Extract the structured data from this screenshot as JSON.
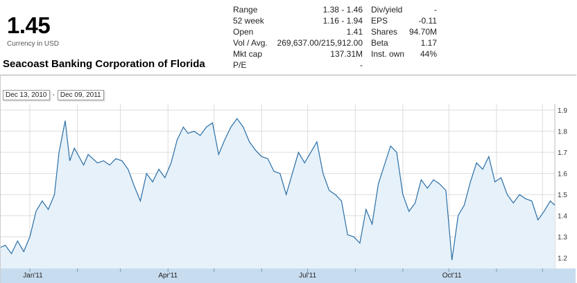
{
  "quote": {
    "price": "1.45",
    "currency": "Currency in USD",
    "company": "Seacoast Banking Corporation of Florida"
  },
  "stats_left": [
    {
      "label": "Range",
      "value": "1.38 - 1.46"
    },
    {
      "label": "52 week",
      "value": "1.16 - 1.94"
    },
    {
      "label": "Open",
      "value": "1.41"
    },
    {
      "label": "Vol / Avg.",
      "value": "269,637.00/215,912.00"
    },
    {
      "label": "Mkt cap",
      "value": "137.31M"
    },
    {
      "label": "P/E",
      "value": "-"
    }
  ],
  "stats_right": [
    {
      "label": "Div/yield",
      "value": "-"
    },
    {
      "label": "EPS",
      "value": "-0.11"
    },
    {
      "label": "Shares",
      "value": "94.70M"
    },
    {
      "label": "Beta",
      "value": "1.17"
    },
    {
      "label": "Inst. own",
      "value": "44%"
    }
  ],
  "date_range": {
    "start": "Dec 13, 2010",
    "separator": "-",
    "end": "Dec 09, 2011"
  },
  "colors": {
    "line": "#2a6ea6",
    "fill": "#e6f1fa",
    "grid": "#dcdcdc",
    "axis_band": "#c7dcef"
  },
  "chart_data": {
    "type": "area",
    "title": "",
    "xlabel": "",
    "ylabel": "",
    "ylim": [
      1.15,
      1.93
    ],
    "y_ticks": [
      1.2,
      1.3,
      1.4,
      1.5,
      1.6,
      1.7,
      1.8,
      1.9
    ],
    "y_tick_labels": [
      "1.2",
      "1.3",
      "1.4",
      "1.5",
      "1.6",
      "1.7",
      "1.8",
      "1.9"
    ],
    "x_labels": [
      {
        "label": "Jan'11",
        "date": "2011-01-03"
      },
      {
        "label": "Apr'11",
        "date": "2011-04-01"
      },
      {
        "label": "Jul'11",
        "date": "2011-07-01"
      },
      {
        "label": "Oct'11",
        "date": "2011-10-03"
      }
    ],
    "x_range": [
      "2010-12-13",
      "2011-12-09"
    ],
    "grid": true,
    "series": [
      {
        "x": [
          "2010-12-13",
          "2010-12-16",
          "2010-12-20",
          "2010-12-24",
          "2010-12-28",
          "2011-01-01",
          "2011-01-05",
          "2011-01-09",
          "2011-01-13",
          "2011-01-17",
          "2011-01-20",
          "2011-01-24",
          "2011-01-27",
          "2011-01-30",
          "2011-02-02",
          "2011-02-05",
          "2011-02-08",
          "2011-02-11",
          "2011-02-14",
          "2011-02-18",
          "2011-02-22",
          "2011-02-26",
          "2011-03-02",
          "2011-03-06",
          "2011-03-10",
          "2011-03-14",
          "2011-03-18",
          "2011-03-22",
          "2011-03-26",
          "2011-03-30",
          "2011-04-03",
          "2011-04-07",
          "2011-04-11",
          "2011-04-14",
          "2011-04-18",
          "2011-04-22",
          "2011-04-26",
          "2011-04-30",
          "2011-05-04",
          "2011-05-08",
          "2011-05-12",
          "2011-05-16",
          "2011-05-20",
          "2011-05-24",
          "2011-05-28",
          "2011-06-01",
          "2011-06-05",
          "2011-06-09",
          "2011-06-13",
          "2011-06-17",
          "2011-06-21",
          "2011-06-25",
          "2011-06-29",
          "2011-07-03",
          "2011-07-07",
          "2011-07-11",
          "2011-07-15",
          "2011-07-19",
          "2011-07-23",
          "2011-07-27",
          "2011-07-31",
          "2011-08-04",
          "2011-08-08",
          "2011-08-12",
          "2011-08-16",
          "2011-08-20",
          "2011-08-24",
          "2011-08-28",
          "2011-09-01",
          "2011-09-05",
          "2011-09-09",
          "2011-09-13",
          "2011-09-17",
          "2011-09-21",
          "2011-09-25",
          "2011-09-29",
          "2011-10-03",
          "2011-10-07",
          "2011-10-11",
          "2011-10-15",
          "2011-10-19",
          "2011-10-23",
          "2011-10-27",
          "2011-10-31",
          "2011-11-04",
          "2011-11-08",
          "2011-11-12",
          "2011-11-16",
          "2011-11-20",
          "2011-11-24",
          "2011-11-28",
          "2011-12-02",
          "2011-12-06",
          "2011-12-09"
        ],
        "values": [
          1.25,
          1.26,
          1.22,
          1.28,
          1.23,
          1.3,
          1.42,
          1.47,
          1.43,
          1.5,
          1.7,
          1.85,
          1.66,
          1.72,
          1.68,
          1.64,
          1.69,
          1.67,
          1.65,
          1.66,
          1.64,
          1.67,
          1.66,
          1.62,
          1.54,
          1.47,
          1.6,
          1.56,
          1.62,
          1.58,
          1.65,
          1.76,
          1.82,
          1.79,
          1.8,
          1.78,
          1.82,
          1.84,
          1.69,
          1.76,
          1.82,
          1.86,
          1.82,
          1.75,
          1.71,
          1.68,
          1.67,
          1.61,
          1.6,
          1.5,
          1.6,
          1.7,
          1.65,
          1.7,
          1.75,
          1.6,
          1.52,
          1.5,
          1.47,
          1.31,
          1.3,
          1.27,
          1.43,
          1.36,
          1.55,
          1.64,
          1.73,
          1.7,
          1.5,
          1.42,
          1.46,
          1.57,
          1.53,
          1.57,
          1.55,
          1.52,
          1.19,
          1.4,
          1.45,
          1.56,
          1.65,
          1.62,
          1.68,
          1.56,
          1.58,
          1.5,
          1.46,
          1.5,
          1.48,
          1.47,
          1.38,
          1.42,
          1.47,
          1.45
        ]
      }
    ]
  }
}
